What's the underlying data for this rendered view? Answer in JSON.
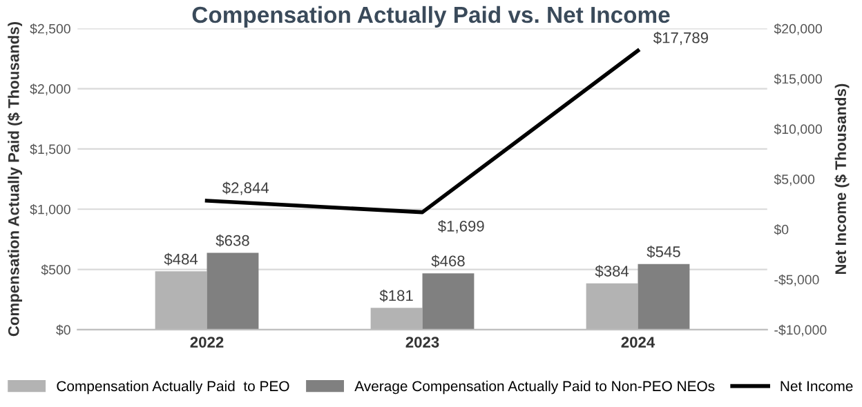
{
  "chart_data": {
    "type": "bar",
    "title": "Compensation Actually Paid vs. Net Income",
    "ylabel": "Compensation Actually Paid ($ Thousands)",
    "y2label": "Net Income ($ Thousands)",
    "categories": [
      "2022",
      "2023",
      "2024"
    ],
    "series": [
      {
        "name": "Compensation Actually Paid  to PEO",
        "color": "#b3b3b3",
        "values": [
          484,
          181,
          384
        ],
        "value_labels": [
          "$484",
          "$181",
          "$384"
        ]
      },
      {
        "name": "Average Compensation Actually Paid to Non-PEO NEOs",
        "color": "#808080",
        "values": [
          638,
          468,
          545
        ],
        "value_labels": [
          "$638",
          "$468",
          "$545"
        ]
      },
      {
        "name": "Net Income",
        "type": "line",
        "axis": "y2",
        "color": "#000000",
        "values": [
          2844,
          1699,
          17789
        ],
        "value_labels": [
          "$2,844",
          "$1,699",
          "$17,789"
        ],
        "marker": "none",
        "line_style": "solid"
      }
    ],
    "ylim": [
      0,
      2500
    ],
    "yticks": [
      {
        "value": 0,
        "label": "$0"
      },
      {
        "value": 500,
        "label": "$500"
      },
      {
        "value": 1000,
        "label": "$1,000"
      },
      {
        "value": 1500,
        "label": "$1,500"
      },
      {
        "value": 2000,
        "label": "$2,000"
      },
      {
        "value": 2500,
        "label": "$2,500"
      }
    ],
    "y2lim": [
      -10000,
      20000
    ],
    "y2ticks": [
      {
        "value": -10000,
        "label": "-$10,000"
      },
      {
        "value": -5000,
        "label": "-$5,000"
      },
      {
        "value": 0,
        "label": "$0"
      },
      {
        "value": 5000,
        "label": "$5,000"
      },
      {
        "value": 10000,
        "label": "$10,000"
      },
      {
        "value": 15000,
        "label": "$15,000"
      },
      {
        "value": 20000,
        "label": "$20,000"
      }
    ],
    "grid": "y",
    "legend": "bottom"
  }
}
